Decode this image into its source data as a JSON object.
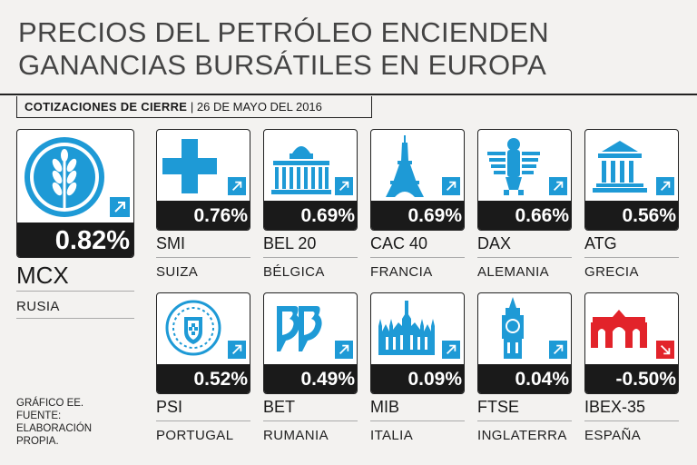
{
  "title": {
    "line1": "PRECIOS DEL PETRÓLEO ENCIENDEN",
    "line2": "GANANCIAS BURSÁTILES EN EUROPA"
  },
  "subtitle": {
    "label": "COTIZACIONES DE CIERRE",
    "separator": "|",
    "date": "26 DE MAYO DEL 2016"
  },
  "colors": {
    "accent": "#1e9ad6",
    "negative": "#e2232a",
    "bar": "#1a1a1a"
  },
  "featured": {
    "name": "MCX",
    "country": "RUSIA",
    "value": "0.82%",
    "direction": "up",
    "icon": "wheat-icon"
  },
  "indices": [
    {
      "name": "SMI",
      "country": "SUIZA",
      "value": "0.76%",
      "direction": "up",
      "icon": "swiss-cross-icon"
    },
    {
      "name": "BEL 20",
      "country": "BÉLGICA",
      "value": "0.69%",
      "direction": "up",
      "icon": "palace-icon"
    },
    {
      "name": "CAC 40",
      "country": "FRANCIA",
      "value": "0.69%",
      "direction": "up",
      "icon": "eiffel-tower-icon"
    },
    {
      "name": "DAX",
      "country": "ALEMANIA",
      "value": "0.66%",
      "direction": "up",
      "icon": "eagle-icon"
    },
    {
      "name": "ATG",
      "country": "GRECIA",
      "value": "0.56%",
      "direction": "up",
      "icon": "parthenon-icon"
    },
    {
      "name": "PSI",
      "country": "PORTUGAL",
      "value": "0.52%",
      "direction": "up",
      "icon": "portugal-shield-icon"
    },
    {
      "name": "BET",
      "country": "RUMANIA",
      "value": "0.49%",
      "direction": "up",
      "icon": "bucharest-logo-icon"
    },
    {
      "name": "MIB",
      "country": "ITALIA",
      "value": "0.09%",
      "direction": "up",
      "icon": "milan-cathedral-icon"
    },
    {
      "name": "FTSE",
      "country": "INGLATERRA",
      "value": "0.04%",
      "direction": "up",
      "icon": "big-ben-icon"
    },
    {
      "name": "IBEX-35",
      "country": "ESPAÑA",
      "value": "-0.50%",
      "direction": "down",
      "icon": "puerta-alcala-icon"
    }
  ],
  "source": {
    "line1": "GRÁFICO EE.",
    "line2": "FUENTE:",
    "line3": "ELABORACIÓN",
    "line4": "PROPIA."
  }
}
